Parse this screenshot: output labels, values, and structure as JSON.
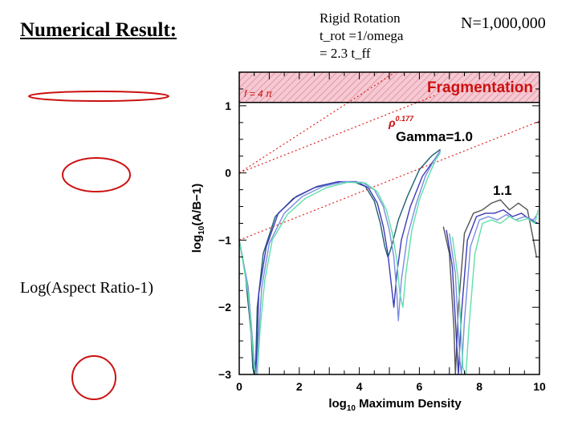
{
  "slide": {
    "title": "Numerical Result:",
    "rigid_rotation": [
      "Rigid Rotation",
      "t_rot =1/omega",
      "= 2.3 t_ff"
    ],
    "particle_count": "N=1,000,000",
    "aspect_label": "Log(Aspect Ratio-1)"
  },
  "colors": {
    "accent_red": "#cc1111",
    "fragmentation_fill": "#f4c2cc",
    "dotted_line": "#e02020"
  },
  "chart_data": {
    "type": "line",
    "xlabel_prefix": "log",
    "xlabel_sub": "10",
    "xlabel_suffix": " Maximum Density",
    "ylabel_prefix": "log",
    "ylabel_sub": "10",
    "ylabel_suffix": "(A/B−1)",
    "xlim": [
      0,
      10
    ],
    "ylim": [
      -3,
      1.5
    ],
    "x_ticks": [
      0,
      2,
      4,
      6,
      8,
      10
    ],
    "y_ticks": [
      1,
      0,
      -1,
      -2,
      -3
    ],
    "x_tick_labels": [
      "0",
      "2",
      "4",
      "6",
      "8",
      "10"
    ],
    "y_tick_labels": [
      "1",
      "0",
      "−1",
      "−2",
      "−3"
    ],
    "fragmentation_region": {
      "y_from": 1.05,
      "y_to": 1.5,
      "label": "Fragmentation"
    },
    "f_label": "f = 4 π",
    "rho_label": "ρ",
    "rho_exponent": "0.177",
    "gamma_label": "Gamma=1.0",
    "gamma_1_1_label": "1.1",
    "reference_lines": [
      {
        "name": "f-4pi",
        "x": [
          0,
          5.2
        ],
        "y": [
          0,
          1.5
        ]
      },
      {
        "name": "rho-0.177-upper",
        "x": [
          0,
          6.5
        ],
        "y": [
          0,
          1.15
        ]
      },
      {
        "name": "rho-0.177-lower",
        "x": [
          0,
          10
        ],
        "y": [
          -1,
          0.77
        ]
      }
    ],
    "series": [
      {
        "name": "gamma-1.0-run-a",
        "color": "#1f5f6f",
        "x": [
          0,
          0.2,
          0.4,
          0.45,
          0.5,
          0.55,
          0.6,
          0.8,
          1.2,
          1.8,
          2.5,
          3.2,
          3.8,
          4.2,
          4.5,
          4.7,
          4.85,
          4.95,
          5.0,
          5.1,
          5.3,
          5.6,
          6.0,
          6.4,
          6.7
        ],
        "y": [
          -1.0,
          -1.5,
          -2.4,
          -2.9,
          -3.0,
          -2.8,
          -2.0,
          -1.2,
          -0.65,
          -0.38,
          -0.22,
          -0.14,
          -0.13,
          -0.2,
          -0.42,
          -0.75,
          -1.1,
          -1.25,
          -1.2,
          -1.05,
          -0.7,
          -0.35,
          0.05,
          0.25,
          0.35
        ]
      },
      {
        "name": "gamma-1.0-run-b",
        "color": "#3a3ab8",
        "x": [
          0,
          0.25,
          0.45,
          0.5,
          0.55,
          0.6,
          0.65,
          0.9,
          1.3,
          1.9,
          2.6,
          3.3,
          3.9,
          4.3,
          4.6,
          4.8,
          4.95,
          5.05,
          5.15,
          5.25,
          5.4,
          5.7,
          6.1,
          6.5,
          6.7
        ],
        "y": [
          -1.0,
          -1.6,
          -2.6,
          -3.0,
          -3.0,
          -2.5,
          -1.8,
          -1.1,
          -0.6,
          -0.35,
          -0.2,
          -0.13,
          -0.13,
          -0.22,
          -0.45,
          -0.8,
          -1.2,
          -1.6,
          -2.0,
          -1.5,
          -1.0,
          -0.5,
          -0.05,
          0.2,
          0.33
        ]
      },
      {
        "name": "gamma-1.0-run-c",
        "color": "#7b8de0",
        "x": [
          0,
          0.3,
          0.5,
          0.55,
          0.6,
          0.65,
          0.75,
          1.0,
          1.5,
          2.1,
          2.8,
          3.5,
          4.1,
          4.5,
          4.8,
          5.0,
          5.15,
          5.25,
          5.3,
          5.4,
          5.6,
          5.9,
          6.2,
          6.5,
          6.7
        ],
        "y": [
          -1.0,
          -1.7,
          -2.8,
          -3.0,
          -3.0,
          -2.4,
          -1.7,
          -1.05,
          -0.6,
          -0.35,
          -0.2,
          -0.13,
          -0.14,
          -0.25,
          -0.5,
          -0.85,
          -1.25,
          -1.8,
          -2.2,
          -1.6,
          -0.95,
          -0.45,
          -0.05,
          0.2,
          0.33
        ]
      },
      {
        "name": "gamma-1.0-run-d",
        "color": "#5ee0a8",
        "x": [
          0,
          0.3,
          0.5,
          0.55,
          0.6,
          0.7,
          0.85,
          1.1,
          1.6,
          2.2,
          2.9,
          3.6,
          4.2,
          4.6,
          4.9,
          5.1,
          5.25,
          5.35,
          5.45,
          5.55,
          5.75,
          6.0,
          6.3,
          6.55,
          6.7
        ],
        "y": [
          -1.0,
          -1.8,
          -2.9,
          -3.0,
          -3.0,
          -2.3,
          -1.6,
          -1.0,
          -0.62,
          -0.38,
          -0.22,
          -0.14,
          -0.15,
          -0.28,
          -0.55,
          -0.9,
          -1.3,
          -1.8,
          -2.0,
          -1.5,
          -0.85,
          -0.4,
          -0.05,
          0.2,
          0.3
        ]
      },
      {
        "name": "gamma-1.1-run-a",
        "color": "#555555",
        "x": [
          6.8,
          7.0,
          7.15,
          7.2,
          7.3,
          7.5,
          7.8,
          8.1,
          8.4,
          8.7,
          9.0,
          9.3,
          9.6,
          9.8,
          9.9
        ],
        "y": [
          -0.8,
          -1.2,
          -2.3,
          -3.0,
          -2.0,
          -0.9,
          -0.6,
          -0.55,
          -0.45,
          -0.4,
          -0.55,
          -0.45,
          -0.55,
          -1.0,
          -1.25
        ]
      },
      {
        "name": "gamma-1.1-run-b",
        "color": "#3a3ab8",
        "x": [
          6.9,
          7.1,
          7.25,
          7.3,
          7.4,
          7.6,
          7.9,
          8.2,
          8.5,
          8.8,
          9.1,
          9.4,
          9.7,
          9.95
        ],
        "y": [
          -0.85,
          -1.4,
          -2.6,
          -3.0,
          -2.1,
          -1.0,
          -0.65,
          -0.6,
          -0.6,
          -0.55,
          -0.65,
          -0.6,
          -0.7,
          -0.75
        ]
      },
      {
        "name": "gamma-1.1-run-c",
        "color": "#7b8de0",
        "x": [
          7.0,
          7.2,
          7.35,
          7.4,
          7.5,
          7.7,
          8.0,
          8.3,
          8.6,
          8.9,
          9.2,
          9.5,
          9.8,
          9.95
        ],
        "y": [
          -0.9,
          -1.5,
          -2.8,
          -3.0,
          -2.2,
          -1.1,
          -0.7,
          -0.65,
          -0.7,
          -0.62,
          -0.7,
          -0.65,
          -0.7,
          -0.6
        ]
      },
      {
        "name": "gamma-1.1-run-d",
        "color": "#5ee0a8",
        "x": [
          7.1,
          7.3,
          7.45,
          7.55,
          7.65,
          7.85,
          8.1,
          8.4,
          8.7,
          9.0,
          9.3,
          9.6,
          9.85,
          9.95
        ],
        "y": [
          -0.95,
          -1.6,
          -2.9,
          -3.0,
          -2.3,
          -1.2,
          -0.75,
          -0.7,
          -0.75,
          -0.65,
          -0.72,
          -0.68,
          -0.75,
          -0.55
        ]
      }
    ]
  }
}
